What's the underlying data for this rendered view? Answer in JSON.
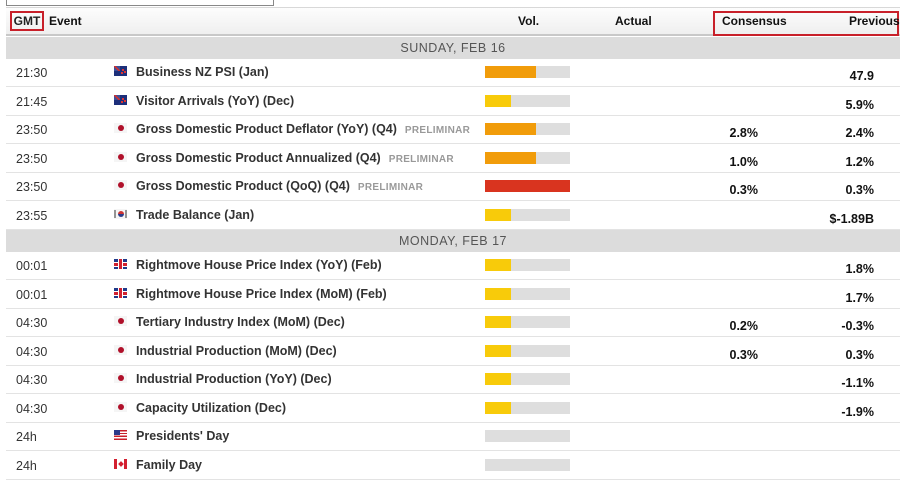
{
  "header": {
    "gmt": "GMT",
    "event": "Event",
    "vol": "Vol.",
    "actual": "Actual",
    "consensus": "Consensus",
    "previous": "Previous"
  },
  "colors": {
    "highlight_border": "#c8202a",
    "vol_high": "#d9341f",
    "vol_medium": "#f19c0a",
    "vol_low": "#f8cb0a",
    "vol_track": "#dedede"
  },
  "days": [
    {
      "label": "SUNDAY, FEB 16",
      "events": [
        {
          "time": "21:30",
          "flag": "nz",
          "name": "Business NZ PSI (Jan)",
          "tag": "",
          "vol_level": "medium",
          "vol_pct": 60,
          "actual": "",
          "consensus": "",
          "previous": "47.9"
        },
        {
          "time": "21:45",
          "flag": "nz",
          "name": "Visitor Arrivals (YoY) (Dec)",
          "tag": "",
          "vol_level": "low",
          "vol_pct": 30,
          "actual": "",
          "consensus": "",
          "previous": "5.9%"
        },
        {
          "time": "23:50",
          "flag": "jp",
          "name": "Gross Domestic Product Deflator (YoY) (Q4)",
          "tag": "PRELIMINAR",
          "vol_level": "medium",
          "vol_pct": 60,
          "actual": "",
          "consensus": "2.8%",
          "previous": "2.4%"
        },
        {
          "time": "23:50",
          "flag": "jp",
          "name": "Gross Domestic Product Annualized (Q4)",
          "tag": "PRELIMINAR",
          "vol_level": "medium",
          "vol_pct": 60,
          "actual": "",
          "consensus": "1.0%",
          "previous": "1.2%"
        },
        {
          "time": "23:50",
          "flag": "jp",
          "name": "Gross Domestic Product (QoQ) (Q4)",
          "tag": "PRELIMINAR",
          "vol_level": "high",
          "vol_pct": 100,
          "actual": "",
          "consensus": "0.3%",
          "previous": "0.3%"
        },
        {
          "time": "23:55",
          "flag": "kr",
          "name": "Trade Balance (Jan)",
          "tag": "",
          "vol_level": "low",
          "vol_pct": 30,
          "actual": "",
          "consensus": "",
          "previous": "$-1.89B"
        }
      ]
    },
    {
      "label": "MONDAY, FEB 17",
      "events": [
        {
          "time": "00:01",
          "flag": "gb",
          "name": "Rightmove House Price Index (YoY) (Feb)",
          "tag": "",
          "vol_level": "low",
          "vol_pct": 30,
          "actual": "",
          "consensus": "",
          "previous": "1.8%"
        },
        {
          "time": "00:01",
          "flag": "gb",
          "name": "Rightmove House Price Index (MoM) (Feb)",
          "tag": "",
          "vol_level": "low",
          "vol_pct": 30,
          "actual": "",
          "consensus": "",
          "previous": "1.7%"
        },
        {
          "time": "04:30",
          "flag": "jp",
          "name": "Tertiary Industry Index (MoM) (Dec)",
          "tag": "",
          "vol_level": "low",
          "vol_pct": 30,
          "actual": "",
          "consensus": "0.2%",
          "previous": "-0.3%"
        },
        {
          "time": "04:30",
          "flag": "jp",
          "name": "Industrial Production (MoM) (Dec)",
          "tag": "",
          "vol_level": "low",
          "vol_pct": 30,
          "actual": "",
          "consensus": "0.3%",
          "previous": "0.3%"
        },
        {
          "time": "04:30",
          "flag": "jp",
          "name": "Industrial Production (YoY) (Dec)",
          "tag": "",
          "vol_level": "low",
          "vol_pct": 30,
          "actual": "",
          "consensus": "",
          "previous": "-1.1%"
        },
        {
          "time": "04:30",
          "flag": "jp",
          "name": "Capacity Utilization (Dec)",
          "tag": "",
          "vol_level": "low",
          "vol_pct": 30,
          "actual": "",
          "consensus": "",
          "previous": "-1.9%"
        },
        {
          "time": "24h",
          "flag": "us",
          "name": "Presidents' Day",
          "tag": "",
          "vol_level": "none",
          "vol_pct": 0,
          "actual": "",
          "consensus": "",
          "previous": ""
        },
        {
          "time": "24h",
          "flag": "ca",
          "name": "Family Day",
          "tag": "",
          "vol_level": "none",
          "vol_pct": 0,
          "actual": "",
          "consensus": "",
          "previous": ""
        }
      ]
    }
  ]
}
